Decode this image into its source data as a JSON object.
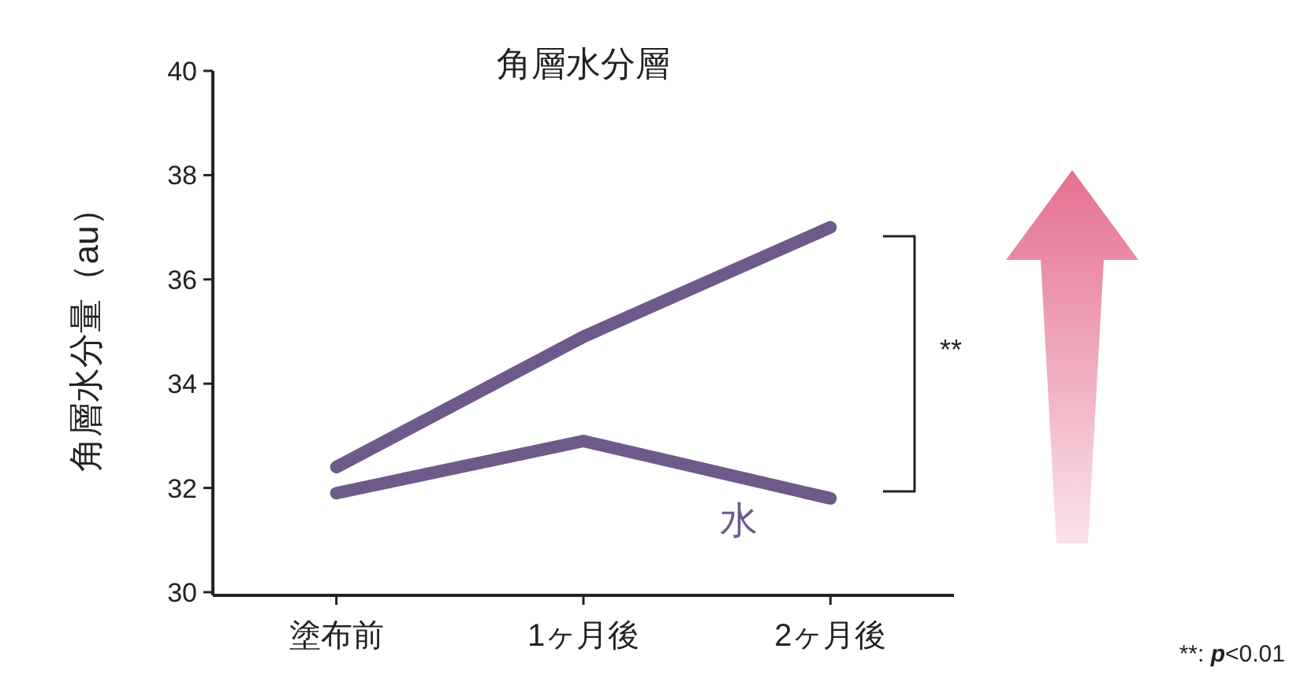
{
  "chart_data": {
    "type": "line",
    "title": "角層水分層",
    "ylabel": "角層水分量（au）",
    "categories": [
      "塗布前",
      "1ヶ月後",
      "2ヶ月後"
    ],
    "series": [
      {
        "color": "#6e5a8a",
        "values": [
          32.4,
          34.9,
          37.0
        ]
      },
      {
        "name": "水",
        "color": "#6e5a8a",
        "values": [
          31.9,
          32.9,
          31.8
        ]
      }
    ],
    "ylim": [
      30,
      40
    ],
    "yticks": [
      30,
      32,
      34,
      36,
      38,
      40
    ],
    "annotations": [
      "**",
      "**: p<0.01"
    ]
  }
}
